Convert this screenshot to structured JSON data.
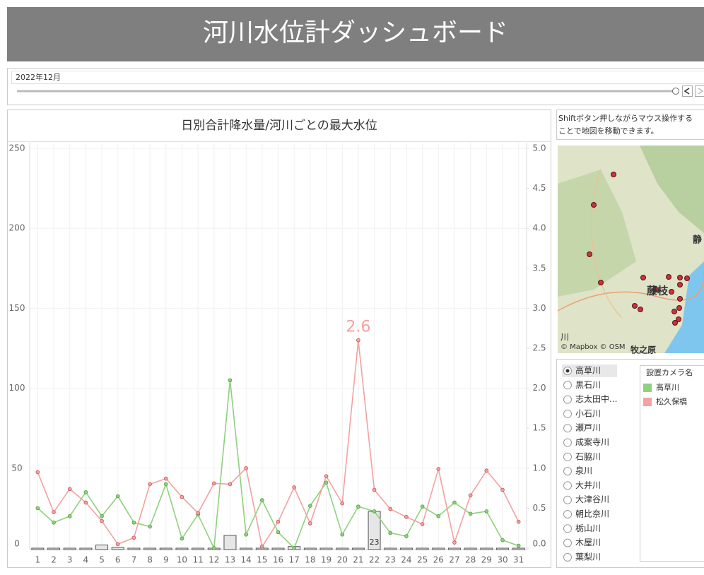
{
  "header": {
    "title": "河川水位計ダッシュボード"
  },
  "filter": {
    "label": "2022年12月"
  },
  "chart_data": {
    "type": "combo",
    "title": "日別合計降水量/河川ごとの最大水位",
    "categories": [
      "1",
      "2",
      "3",
      "4",
      "5",
      "6",
      "7",
      "8",
      "9",
      "10",
      "11",
      "12",
      "13",
      "14",
      "15",
      "16",
      "17",
      "18",
      "19",
      "20",
      "21",
      "22",
      "23",
      "24",
      "25",
      "26",
      "27",
      "28",
      "29",
      "30",
      "31"
    ],
    "bars": {
      "color": "#e6e6e6",
      "values": [
        0,
        0,
        0,
        0,
        2,
        0.5,
        0,
        0,
        0,
        0,
        0,
        0,
        8,
        0,
        0,
        0,
        1,
        0,
        0,
        0,
        0,
        23,
        0,
        0,
        0,
        0,
        0,
        0,
        0,
        0,
        0
      ]
    },
    "series": [
      {
        "name": "高草川",
        "color": "#8fd17e",
        "axis": "y2",
        "values": [
          0.5,
          0.32,
          0.4,
          0.7,
          0.4,
          0.65,
          0.32,
          0.27,
          0.8,
          0.12,
          0.42,
          0.0,
          2.1,
          0.17,
          0.6,
          0.2,
          0.0,
          0.53,
          0.82,
          0.17,
          0.52,
          0.46,
          0.19,
          0.15,
          0.52,
          0.4,
          0.57,
          0.43,
          0.46,
          0.1,
          0.03
        ]
      },
      {
        "name": "松久保橋",
        "color": "#f4a1a1",
        "axis": "y2",
        "values": [
          0.95,
          0.45,
          0.74,
          0.57,
          0.34,
          0.05,
          0.13,
          0.8,
          0.87,
          0.64,
          0.44,
          0.81,
          0.8,
          1.0,
          0.02,
          0.33,
          0.76,
          0.31,
          0.9,
          0.56,
          2.6,
          0.73,
          0.49,
          0.39,
          0.3,
          0.99,
          0.07,
          0.66,
          0.97,
          0.73,
          0.33
        ]
      }
    ],
    "ylim": [
      0,
      250
    ],
    "yticks": [
      0,
      50,
      100,
      150,
      200,
      250
    ],
    "y2lim": [
      0,
      5
    ],
    "y2ticks": [
      {
        "value": 0,
        "label": "0.0"
      },
      {
        "value": 0.5,
        "label": "0.5"
      },
      {
        "value": 1,
        "label": "1.0"
      },
      {
        "value": 1.5,
        "label": "1.5"
      },
      {
        "value": 2,
        "label": "2.0"
      },
      {
        "value": 2.5,
        "label": "2.5"
      },
      {
        "value": 3,
        "label": "3.0"
      },
      {
        "value": 3.5,
        "label": "3.5"
      },
      {
        "value": 4,
        "label": "4.0"
      },
      {
        "value": 4.5,
        "label": "4.5"
      },
      {
        "value": 5,
        "label": "5.0"
      }
    ],
    "grid": true,
    "legend_title": "設置カメラ名"
  },
  "map": {
    "note": [
      "Shiftボタン押しながらマウス操作する",
      "ことで地図を移動できます。"
    ],
    "labels": [
      "藤枝",
      "静",
      "牧之原",
      "川"
    ],
    "credit": "© Mapbox © OSM"
  },
  "rivers": [
    "高草川",
    "黒石川",
    "志太田中...",
    "小石川",
    "瀬戸川",
    "成案寺川",
    "石脇川",
    "泉川",
    "大井川",
    "大津谷川",
    "朝比奈川",
    "栃山川",
    "木屋川",
    "葉梨川"
  ]
}
